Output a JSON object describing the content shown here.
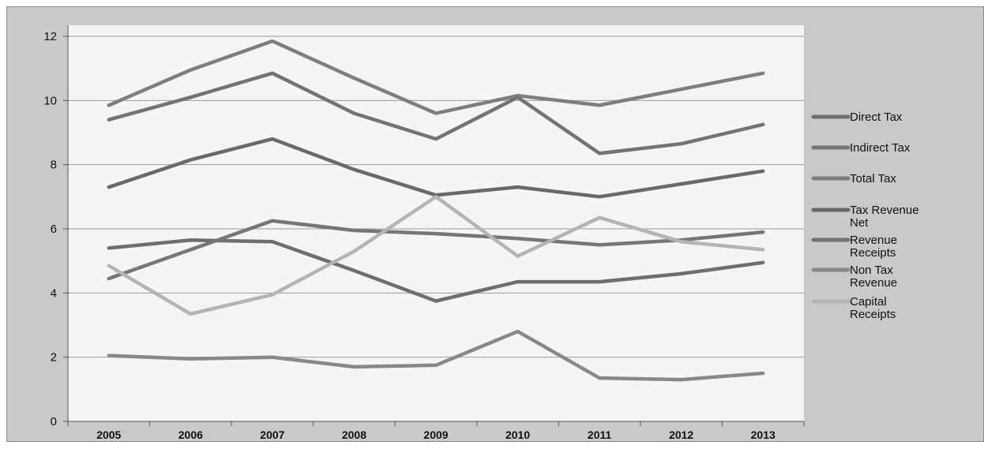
{
  "chart_data": {
    "type": "line",
    "title": "",
    "xlabel": "",
    "ylabel": "",
    "categories": [
      "2005",
      "2006",
      "2007",
      "2008",
      "2009",
      "2010",
      "2011",
      "2012",
      "2013"
    ],
    "ylim": [
      0,
      12
    ],
    "yticks": [
      0,
      2,
      4,
      6,
      8,
      10,
      12
    ],
    "grid": "horizontal",
    "legend_position": "right",
    "series": [
      {
        "name": "Direct Tax",
        "color": "#6e6e6e",
        "values": [
          5.4,
          5.65,
          5.6,
          4.7,
          3.75,
          4.35,
          4.35,
          4.6,
          4.95
        ]
      },
      {
        "name": "Indirect Tax",
        "color": "#767676",
        "values": [
          4.45,
          5.35,
          6.25,
          5.95,
          5.85,
          5.7,
          5.5,
          5.65,
          5.9
        ]
      },
      {
        "name": "Total Tax",
        "color": "#7e7e7e",
        "values": [
          9.85,
          10.95,
          11.85,
          10.7,
          9.6,
          10.15,
          9.85,
          10.35,
          10.85
        ]
      },
      {
        "name": "Tax Revenue Net",
        "color": "#696969",
        "values": [
          7.3,
          8.15,
          8.8,
          7.85,
          7.05,
          7.3,
          7.0,
          7.4,
          7.8
        ]
      },
      {
        "name": "Revenue Receipts",
        "color": "#737373",
        "values": [
          9.4,
          10.1,
          10.85,
          9.6,
          8.8,
          10.1,
          8.35,
          8.65,
          9.25
        ]
      },
      {
        "name": "Non Tax Revenue",
        "color": "#888888",
        "values": [
          2.05,
          1.95,
          2.0,
          1.7,
          1.75,
          2.8,
          1.35,
          1.3,
          1.5
        ]
      },
      {
        "name": "Capital Receipts",
        "color": "#b4b4b4",
        "values": [
          4.85,
          3.35,
          3.95,
          5.3,
          7.0,
          5.15,
          6.35,
          5.6,
          5.35
        ]
      }
    ]
  }
}
